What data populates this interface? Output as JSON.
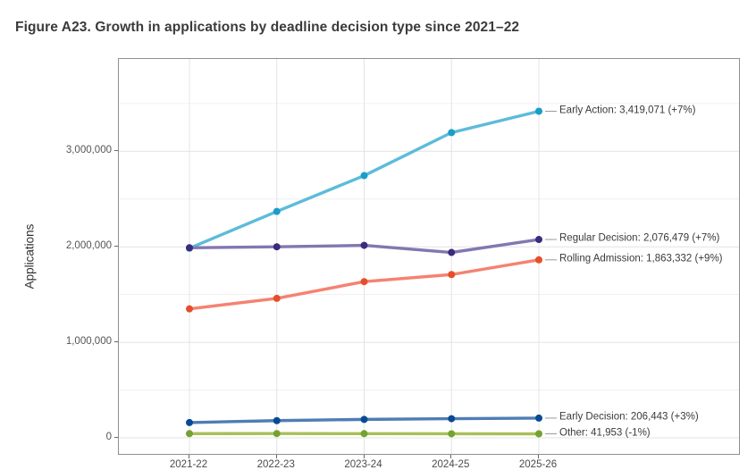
{
  "figure": {
    "title": "Figure A23. Growth in applications by deadline decision type since 2021–22"
  },
  "chart_data": {
    "type": "line",
    "title": "Figure A23. Growth in applications by deadline decision type since 2021–22",
    "xlabel": "",
    "ylabel": "Applications",
    "x_categories": [
      "2021-22",
      "2022-23",
      "2023-24",
      "2024-25",
      "2025-26"
    ],
    "y_tick_labels": [
      "0",
      "1,000,000",
      "2,000,000",
      "3,000,000"
    ],
    "y_tick_values": [
      0,
      1000000,
      2000000,
      3000000
    ],
    "y_minor_tick_values": [
      500000,
      1500000,
      2500000,
      3500000
    ],
    "ylim": [
      0,
      3970000
    ],
    "grid": "horizontal major+minor gridlines, vertical gridlines at category ticks",
    "legend_position": "inline labels right of last data point",
    "series": [
      {
        "name": "Early Action",
        "label": "Early Action: 3,419,071 (+7%)",
        "final_value": 3419071,
        "final_change_pct": "+7%",
        "line_color": "#5cbcd9",
        "marker_color": "#1a9dc9",
        "values": [
          1985000,
          2370000,
          2745000,
          3195394,
          3419071
        ]
      },
      {
        "name": "Regular Decision",
        "label": "Regular Decision: 2,076,479 (+7%)",
        "final_value": 2076479,
        "final_change_pct": "+7%",
        "line_color": "#8377b1",
        "marker_color": "#3c2a7e",
        "values": [
          1990000,
          2000000,
          2015000,
          1940635,
          2076479
        ]
      },
      {
        "name": "Rolling Admission",
        "label": "Rolling Admission: 1,863,332 (+9%)",
        "final_value": 1863332,
        "final_change_pct": "+9%",
        "line_color": "#f58271",
        "marker_color": "#e54e2b",
        "values": [
          1350000,
          1460000,
          1635000,
          1709479,
          1863332
        ]
      },
      {
        "name": "Early Decision",
        "label": "Early Decision: 206,443 (+3%)",
        "final_value": 206443,
        "final_change_pct": "+3%",
        "line_color": "#4f7db4",
        "marker_color": "#0a4a94",
        "values": [
          160000,
          180000,
          193000,
          200430,
          206443
        ]
      },
      {
        "name": "Other",
        "label": "Other: 41,953 (-1%)",
        "final_value": 41953,
        "final_change_pct": "-1%",
        "line_color": "#a9bf58",
        "marker_color": "#73a32f",
        "values": [
          44000,
          45000,
          44000,
          42377,
          41953
        ]
      }
    ]
  }
}
